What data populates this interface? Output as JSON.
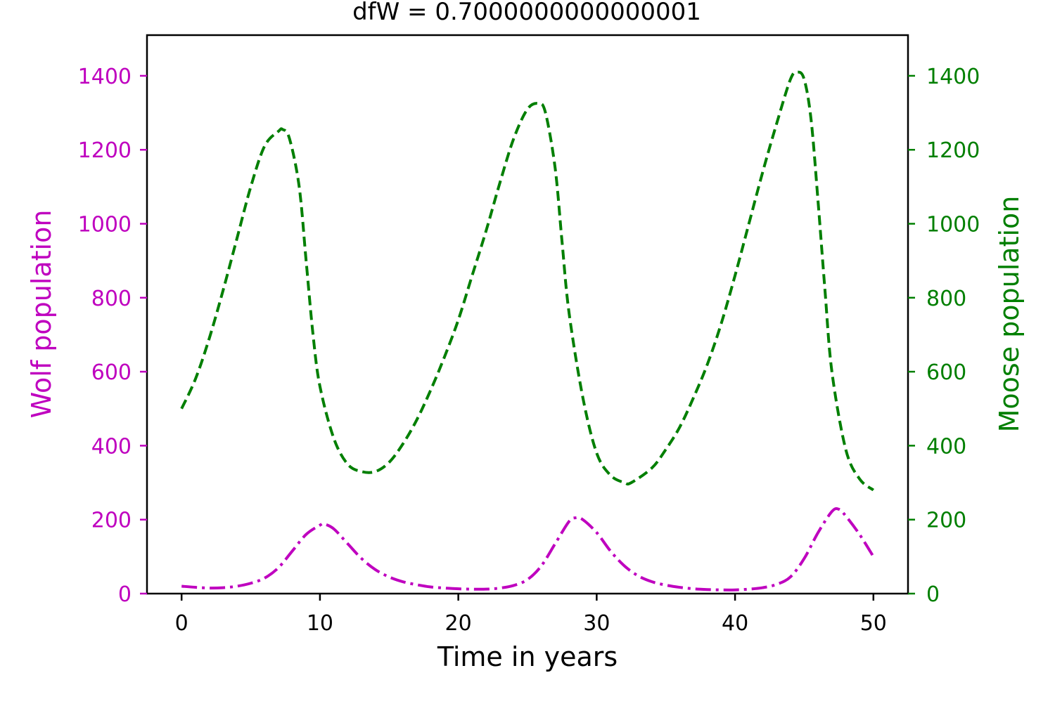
{
  "chart_data": {
    "type": "line",
    "title": "dfW = 0.7000000000000001",
    "xlabel": "Time in years",
    "ylabel_left": "Wolf population",
    "ylabel_right": "Moose population",
    "xlim": [
      -2.5,
      52.5
    ],
    "ylim_left": [
      0,
      1510
    ],
    "ylim_right": [
      0,
      1510
    ],
    "x_ticks": [
      0,
      10,
      20,
      30,
      40,
      50
    ],
    "y_ticks_left": [
      0,
      200,
      400,
      600,
      800,
      1000,
      1200,
      1400
    ],
    "y_ticks_right": [
      0,
      200,
      400,
      600,
      800,
      1000,
      1200,
      1400
    ],
    "grid": false,
    "colors": {
      "wolf": "#bf00bf",
      "moose": "#007f00",
      "axis": "#000000"
    },
    "series": [
      {
        "key": "wolf",
        "axis": "left",
        "style": "dashdot",
        "x": [
          0,
          1,
          2,
          3,
          4,
          5,
          6,
          7,
          8,
          9,
          10,
          10.3,
          11,
          12,
          13,
          14,
          15,
          16,
          17,
          18,
          19,
          20,
          21,
          22,
          23,
          24,
          25,
          26,
          27,
          28,
          28.5,
          29,
          30,
          31,
          32,
          33,
          34,
          35,
          36,
          37,
          38,
          39,
          40,
          41,
          42,
          43,
          44,
          45,
          46,
          47,
          47.5,
          48,
          49,
          50
        ],
        "y": [
          20,
          17,
          15,
          16,
          20,
          28,
          42,
          70,
          115,
          160,
          185,
          188,
          175,
          135,
          95,
          65,
          45,
          32,
          24,
          18,
          15,
          13,
          12,
          12,
          15,
          22,
          38,
          75,
          135,
          195,
          205,
          200,
          165,
          115,
          75,
          48,
          32,
          23,
          17,
          13,
          11,
          10,
          10,
          12,
          16,
          25,
          45,
          95,
          165,
          222,
          228,
          210,
          160,
          100
        ]
      },
      {
        "key": "moose",
        "axis": "right",
        "style": "dashed",
        "x": [
          0,
          1,
          2,
          3,
          4,
          5,
          6,
          7,
          7.3,
          7.8,
          8.5,
          9,
          9.5,
          10,
          11,
          12,
          13,
          14,
          15,
          16,
          17,
          18,
          19,
          20,
          21,
          22,
          23,
          24,
          25,
          25.8,
          26.3,
          27,
          27.5,
          28,
          29,
          30,
          31,
          32,
          32.5,
          34,
          35,
          36,
          37,
          38,
          39,
          40,
          41,
          42,
          43,
          44,
          44.5,
          45,
          45.5,
          46,
          46.5,
          47,
          48,
          49,
          50
        ],
        "y": [
          500,
          580,
          690,
          820,
          960,
          1100,
          1210,
          1250,
          1255,
          1230,
          1100,
          900,
          700,
          560,
          420,
          350,
          330,
          330,
          355,
          405,
          470,
          550,
          640,
          740,
          860,
          980,
          1110,
          1230,
          1310,
          1325,
          1300,
          1150,
          950,
          760,
          530,
          380,
          320,
          300,
          300,
          340,
          390,
          450,
          530,
          620,
          730,
          860,
          1000,
          1140,
          1270,
          1390,
          1410,
          1390,
          1280,
          1060,
          820,
          600,
          390,
          310,
          280
        ]
      }
    ]
  }
}
